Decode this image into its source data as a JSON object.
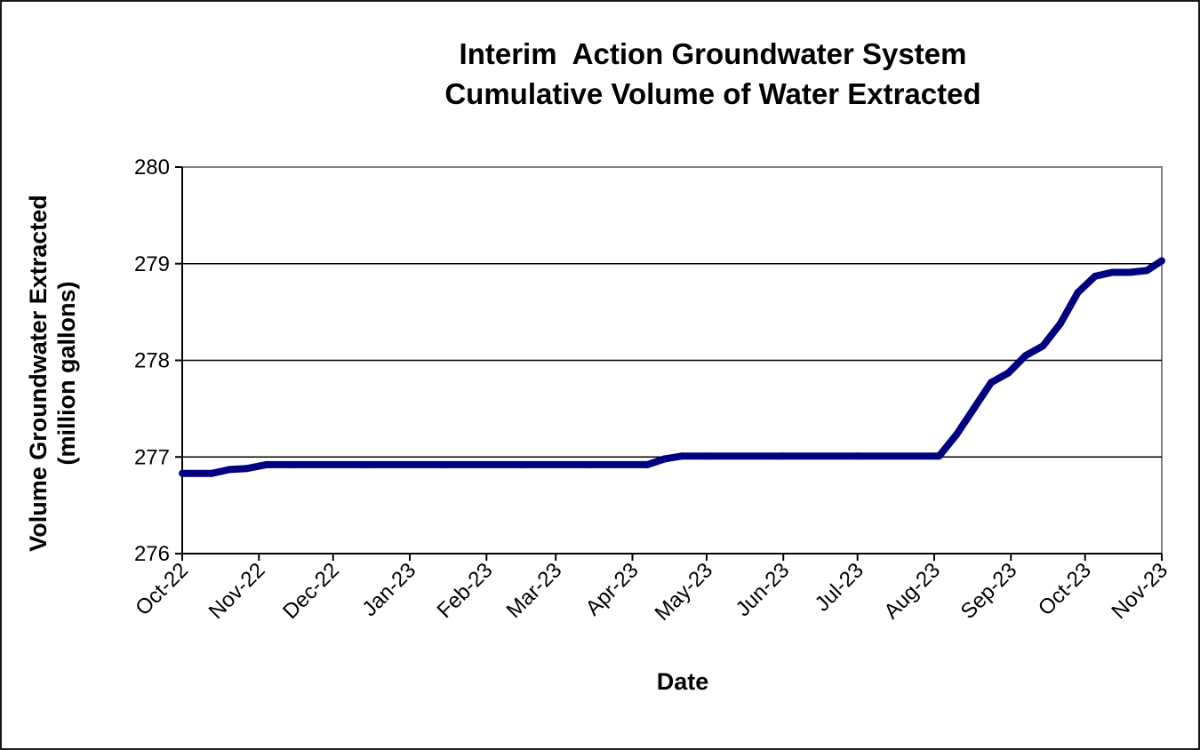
{
  "chart_data": {
    "type": "line",
    "title": "Interim  Action Groundwater System",
    "subtitle": "Cumulative Volume of Water Extracted",
    "xlabel": "Date",
    "ylabel": "Volume Groundwater Extracted",
    "ylabel_unit": "(million gallons)",
    "ylim": [
      276,
      280
    ],
    "yticks": [
      "276",
      "277",
      "278",
      "279",
      "280"
    ],
    "grid": "horizontal",
    "legend": "none",
    "line_color": "#000080",
    "x_dates": [
      "2022-10-01",
      "2022-11-01",
      "2022-12-01",
      "2023-01-01",
      "2023-02-01",
      "2023-03-01",
      "2023-04-01",
      "2023-05-01",
      "2023-06-01",
      "2023-07-01",
      "2023-08-01",
      "2023-09-01",
      "2023-10-01",
      "2023-11-01"
    ],
    "xticks": [
      "Oct-22",
      "Nov-22",
      "Dec-22",
      "Jan-23",
      "Feb-23",
      "Mar-23",
      "Apr-23",
      "May-23",
      "Jun-23",
      "Jul-23",
      "Aug-23",
      "Sep-23",
      "Oct-23",
      "Nov-23"
    ],
    "series": [
      {
        "points": [
          {
            "x": "2022-10-01",
            "y": 276.83
          },
          {
            "x": "2022-10-13",
            "y": 276.83
          },
          {
            "x": "2022-10-20",
            "y": 276.87
          },
          {
            "x": "2022-10-27",
            "y": 276.88
          },
          {
            "x": "2022-11-04",
            "y": 276.92
          },
          {
            "x": "2022-11-15",
            "y": 276.92
          },
          {
            "x": "2022-12-15",
            "y": 276.92
          },
          {
            "x": "2023-01-15",
            "y": 276.92
          },
          {
            "x": "2023-02-15",
            "y": 276.92
          },
          {
            "x": "2023-03-15",
            "y": 276.92
          },
          {
            "x": "2023-04-07",
            "y": 276.92
          },
          {
            "x": "2023-04-14",
            "y": 276.98
          },
          {
            "x": "2023-04-21",
            "y": 277.01
          },
          {
            "x": "2023-05-01",
            "y": 277.01
          },
          {
            "x": "2023-06-01",
            "y": 277.01
          },
          {
            "x": "2023-07-01",
            "y": 277.01
          },
          {
            "x": "2023-08-03",
            "y": 277.01
          },
          {
            "x": "2023-08-10",
            "y": 277.23
          },
          {
            "x": "2023-08-17",
            "y": 277.5
          },
          {
            "x": "2023-08-24",
            "y": 277.77
          },
          {
            "x": "2023-08-31",
            "y": 277.87
          },
          {
            "x": "2023-09-07",
            "y": 278.05
          },
          {
            "x": "2023-09-14",
            "y": 278.15
          },
          {
            "x": "2023-09-21",
            "y": 278.38
          },
          {
            "x": "2023-09-28",
            "y": 278.7
          },
          {
            "x": "2023-10-05",
            "y": 278.87
          },
          {
            "x": "2023-10-12",
            "y": 278.91
          },
          {
            "x": "2023-10-19",
            "y": 278.91
          },
          {
            "x": "2023-10-26",
            "y": 278.93
          },
          {
            "x": "2023-11-01",
            "y": 279.03
          }
        ]
      }
    ]
  }
}
